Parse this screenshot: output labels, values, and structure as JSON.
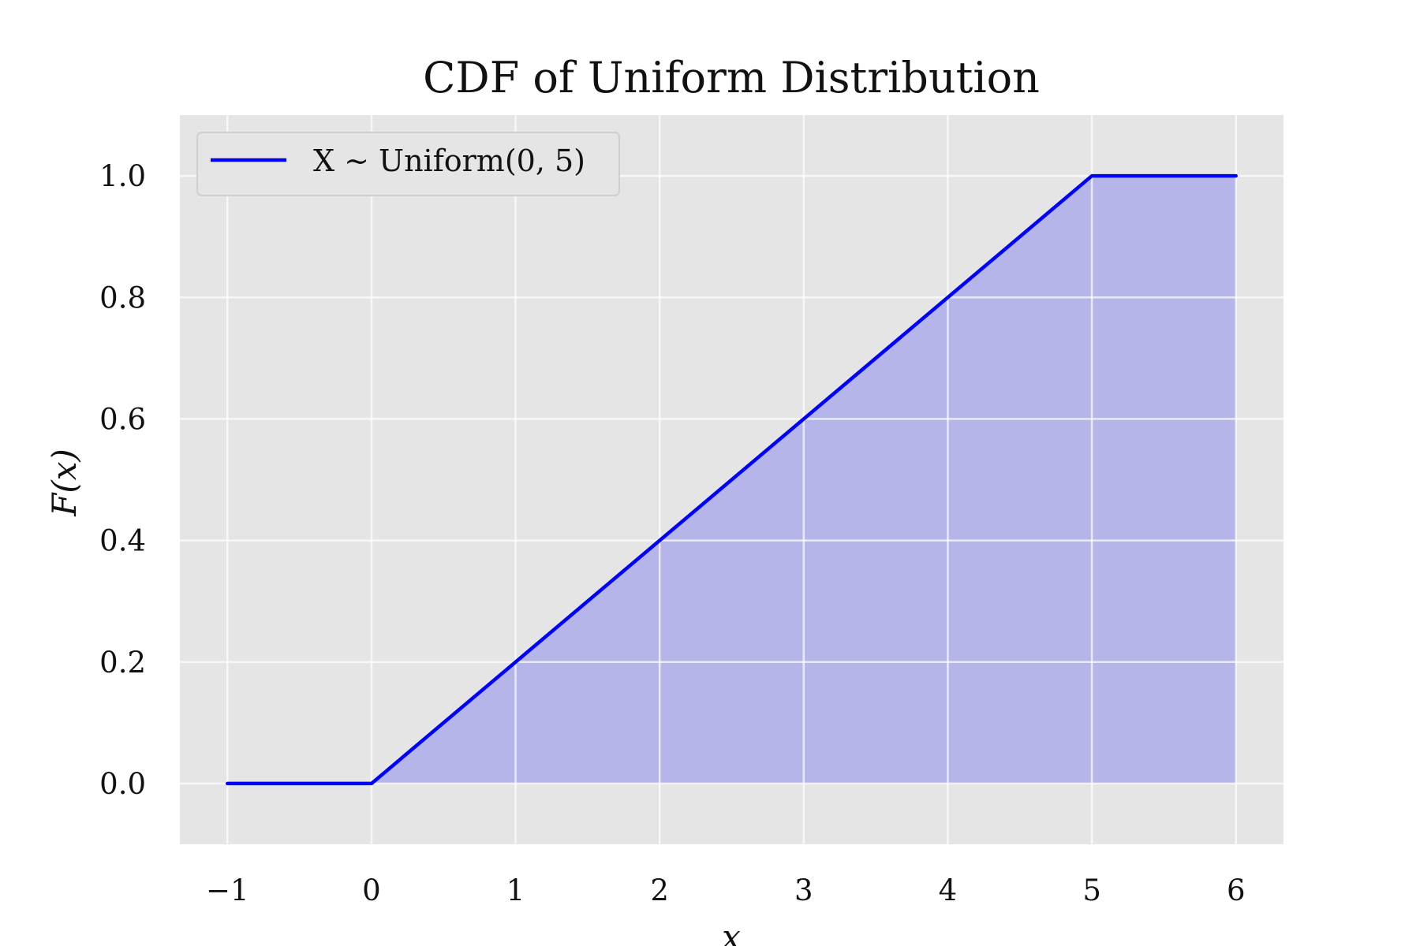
{
  "chart_data": {
    "type": "line",
    "title": "CDF of Uniform Distribution",
    "xlabel": "x",
    "ylabel": "F(x)",
    "xlim": [
      -1.33,
      6.33
    ],
    "ylim": [
      -0.1,
      1.1
    ],
    "xticks": [
      -1,
      0,
      1,
      2,
      3,
      4,
      5,
      6
    ],
    "xtick_labels": [
      "−1",
      "0",
      "1",
      "2",
      "3",
      "4",
      "5",
      "6"
    ],
    "yticks": [
      0.0,
      0.2,
      0.4,
      0.6,
      0.8,
      1.0
    ],
    "ytick_labels": [
      "0.0",
      "0.2",
      "0.4",
      "0.6",
      "0.8",
      "1.0"
    ],
    "grid": true,
    "legend_placement": "top-left",
    "series": [
      {
        "name": "X ∼ Uniform(0, 5)",
        "x": [
          -1,
          0,
          5,
          6
        ],
        "y": [
          0,
          0,
          1,
          1
        ],
        "color": "#0000ff",
        "fill_under_from": 0,
        "fill_color": "#9999ee"
      }
    ],
    "colors": {
      "plot_background": "#e5e5e5",
      "grid": "#ffffff",
      "line": "#0000ff",
      "fill": "#b5b5ea"
    }
  }
}
